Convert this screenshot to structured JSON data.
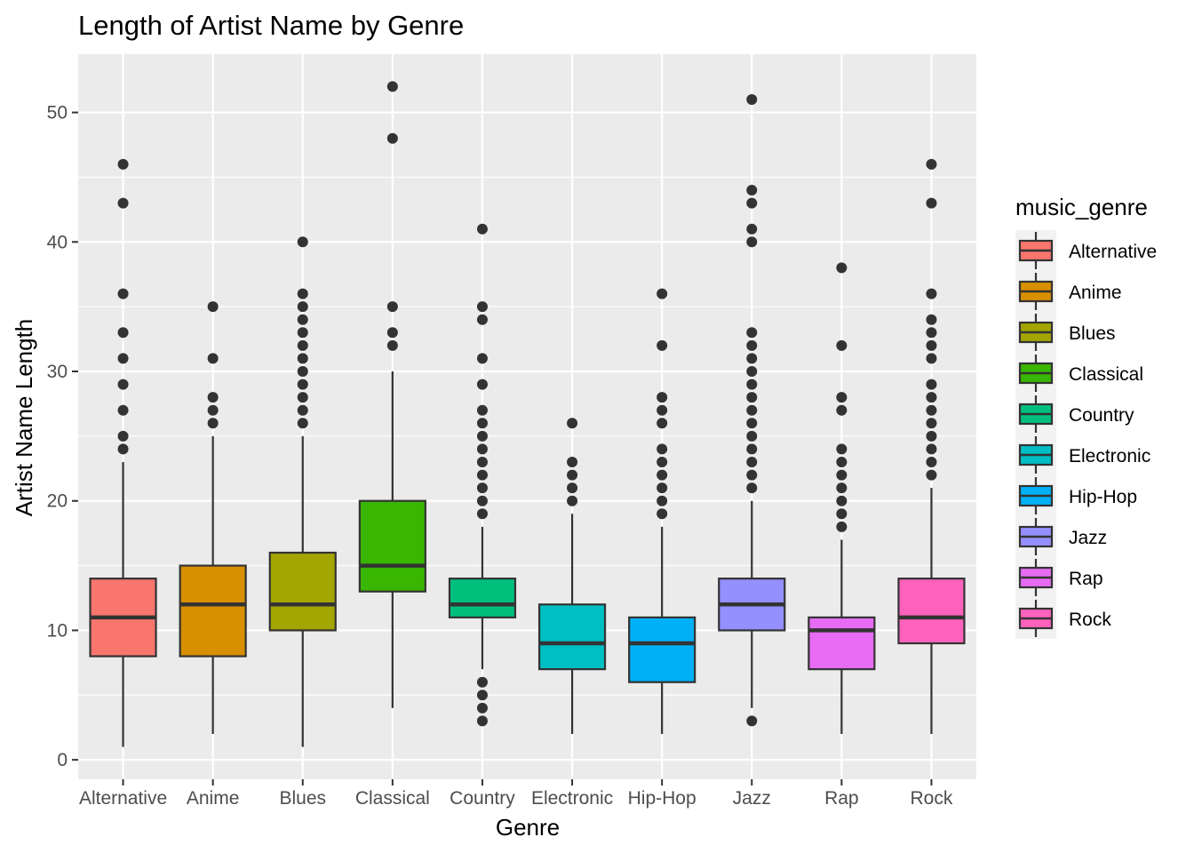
{
  "chart_data": {
    "type": "boxplot",
    "title": "Length of Artist Name by Genre",
    "xlabel": "Genre",
    "ylabel": "Artist Name Length",
    "ylim": [
      -1.5,
      54.5
    ],
    "yticks": [
      0,
      10,
      20,
      30,
      40,
      50
    ],
    "grid": true,
    "legend": {
      "title": "music_genre",
      "position": "right"
    },
    "categories": [
      "Alternative",
      "Anime",
      "Blues",
      "Classical",
      "Country",
      "Electronic",
      "Hip-Hop",
      "Jazz",
      "Rap",
      "Rock"
    ],
    "colors": [
      "#F8766D",
      "#D89000",
      "#A3A500",
      "#39B600",
      "#00BF7D",
      "#00BFC4",
      "#00B0F6",
      "#9590FF",
      "#E76BF3",
      "#FF62BC"
    ],
    "series": [
      {
        "name": "Alternative",
        "whisker_low": 1,
        "q1": 8,
        "median": 11,
        "q3": 14,
        "whisker_high": 23,
        "outliers": [
          24,
          25,
          27,
          29,
          31,
          33,
          36,
          43,
          46
        ]
      },
      {
        "name": "Anime",
        "whisker_low": 2,
        "q1": 8,
        "median": 12,
        "q3": 15,
        "whisker_high": 25,
        "outliers": [
          26,
          27,
          28,
          31,
          35
        ]
      },
      {
        "name": "Blues",
        "whisker_low": 1,
        "q1": 10,
        "median": 12,
        "q3": 16,
        "whisker_high": 25,
        "outliers": [
          26,
          27,
          28,
          29,
          30,
          31,
          32,
          33,
          34,
          35,
          36,
          40
        ]
      },
      {
        "name": "Classical",
        "whisker_low": 4,
        "q1": 13,
        "median": 15,
        "q3": 20,
        "whisker_high": 30,
        "outliers": [
          32,
          33,
          35,
          48,
          52
        ]
      },
      {
        "name": "Country",
        "whisker_low": 7,
        "q1": 11,
        "median": 12,
        "q3": 14,
        "whisker_high": 18,
        "outliers": [
          3,
          4,
          5,
          6,
          19,
          20,
          21,
          22,
          23,
          24,
          25,
          26,
          27,
          29,
          31,
          34,
          35,
          41
        ]
      },
      {
        "name": "Electronic",
        "whisker_low": 2,
        "q1": 7,
        "median": 9,
        "q3": 12,
        "whisker_high": 19,
        "outliers": [
          20,
          21,
          22,
          23,
          26
        ]
      },
      {
        "name": "Hip-Hop",
        "whisker_low": 2,
        "q1": 6,
        "median": 9,
        "q3": 11,
        "whisker_high": 18,
        "outliers": [
          19,
          20,
          21,
          22,
          23,
          24,
          26,
          27,
          28,
          32,
          36
        ]
      },
      {
        "name": "Jazz",
        "whisker_low": 4,
        "q1": 10,
        "median": 12,
        "q3": 14,
        "whisker_high": 20,
        "outliers": [
          3,
          21,
          22,
          23,
          24,
          25,
          26,
          27,
          28,
          29,
          30,
          31,
          32,
          33,
          40,
          41,
          43,
          44,
          51
        ]
      },
      {
        "name": "Rap",
        "whisker_low": 2,
        "q1": 7,
        "median": 10,
        "q3": 11,
        "whisker_high": 17,
        "outliers": [
          18,
          19,
          20,
          21,
          22,
          23,
          24,
          27,
          28,
          32,
          38
        ]
      },
      {
        "name": "Rock",
        "whisker_low": 2,
        "q1": 9,
        "median": 11,
        "q3": 14,
        "whisker_high": 21,
        "outliers": [
          22,
          23,
          24,
          25,
          26,
          27,
          28,
          29,
          31,
          32,
          33,
          34,
          36,
          43,
          46
        ]
      }
    ]
  }
}
